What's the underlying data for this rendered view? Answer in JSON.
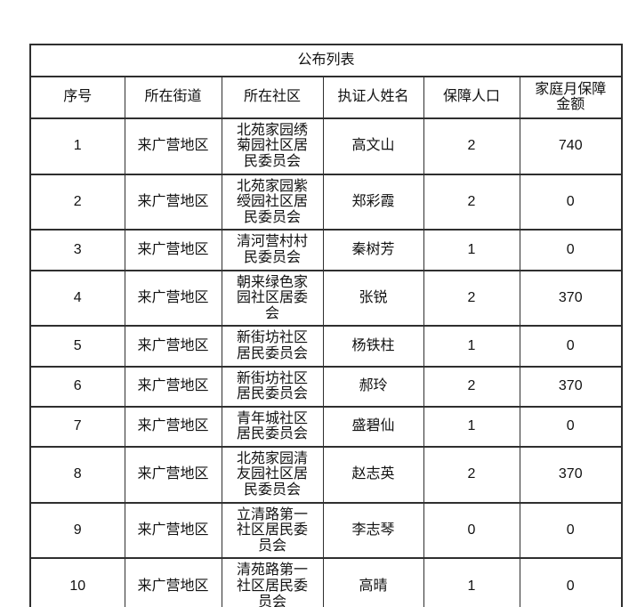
{
  "table": {
    "title": "公布列表",
    "columns": [
      "序号",
      "所在街道",
      "所在社区",
      "执证人姓名",
      "保障人口",
      "家庭月保障金额"
    ],
    "rows": [
      [
        "1",
        "来广营地区",
        "北苑家园绣菊园社区居民委员会",
        "高文山",
        "2",
        "740"
      ],
      [
        "2",
        "来广营地区",
        "北苑家园紫绶园社区居民委员会",
        "郑彩霞",
        "2",
        "0"
      ],
      [
        "3",
        "来广营地区",
        "清河营村村民委员会",
        "秦树芳",
        "1",
        "0"
      ],
      [
        "4",
        "来广营地区",
        "朝来绿色家园社区居委会",
        "张锐",
        "2",
        "370"
      ],
      [
        "5",
        "来广营地区",
        "新街坊社区居民委员会",
        "杨铁柱",
        "1",
        "0"
      ],
      [
        "6",
        "来广营地区",
        "新街坊社区居民委员会",
        "郝玲",
        "2",
        "370"
      ],
      [
        "7",
        "来广营地区",
        "青年城社区居民委员会",
        "盛碧仙",
        "1",
        "0"
      ],
      [
        "8",
        "来广营地区",
        "北苑家园清友园社区居民委员会",
        "赵志英",
        "2",
        "370"
      ],
      [
        "9",
        "来广营地区",
        "立清路第一社区居民委员会",
        "李志琴",
        "0",
        "0"
      ],
      [
        "10",
        "来广营地区",
        "清苑路第一社区居民委员会",
        "高晴",
        "1",
        "0"
      ]
    ]
  }
}
